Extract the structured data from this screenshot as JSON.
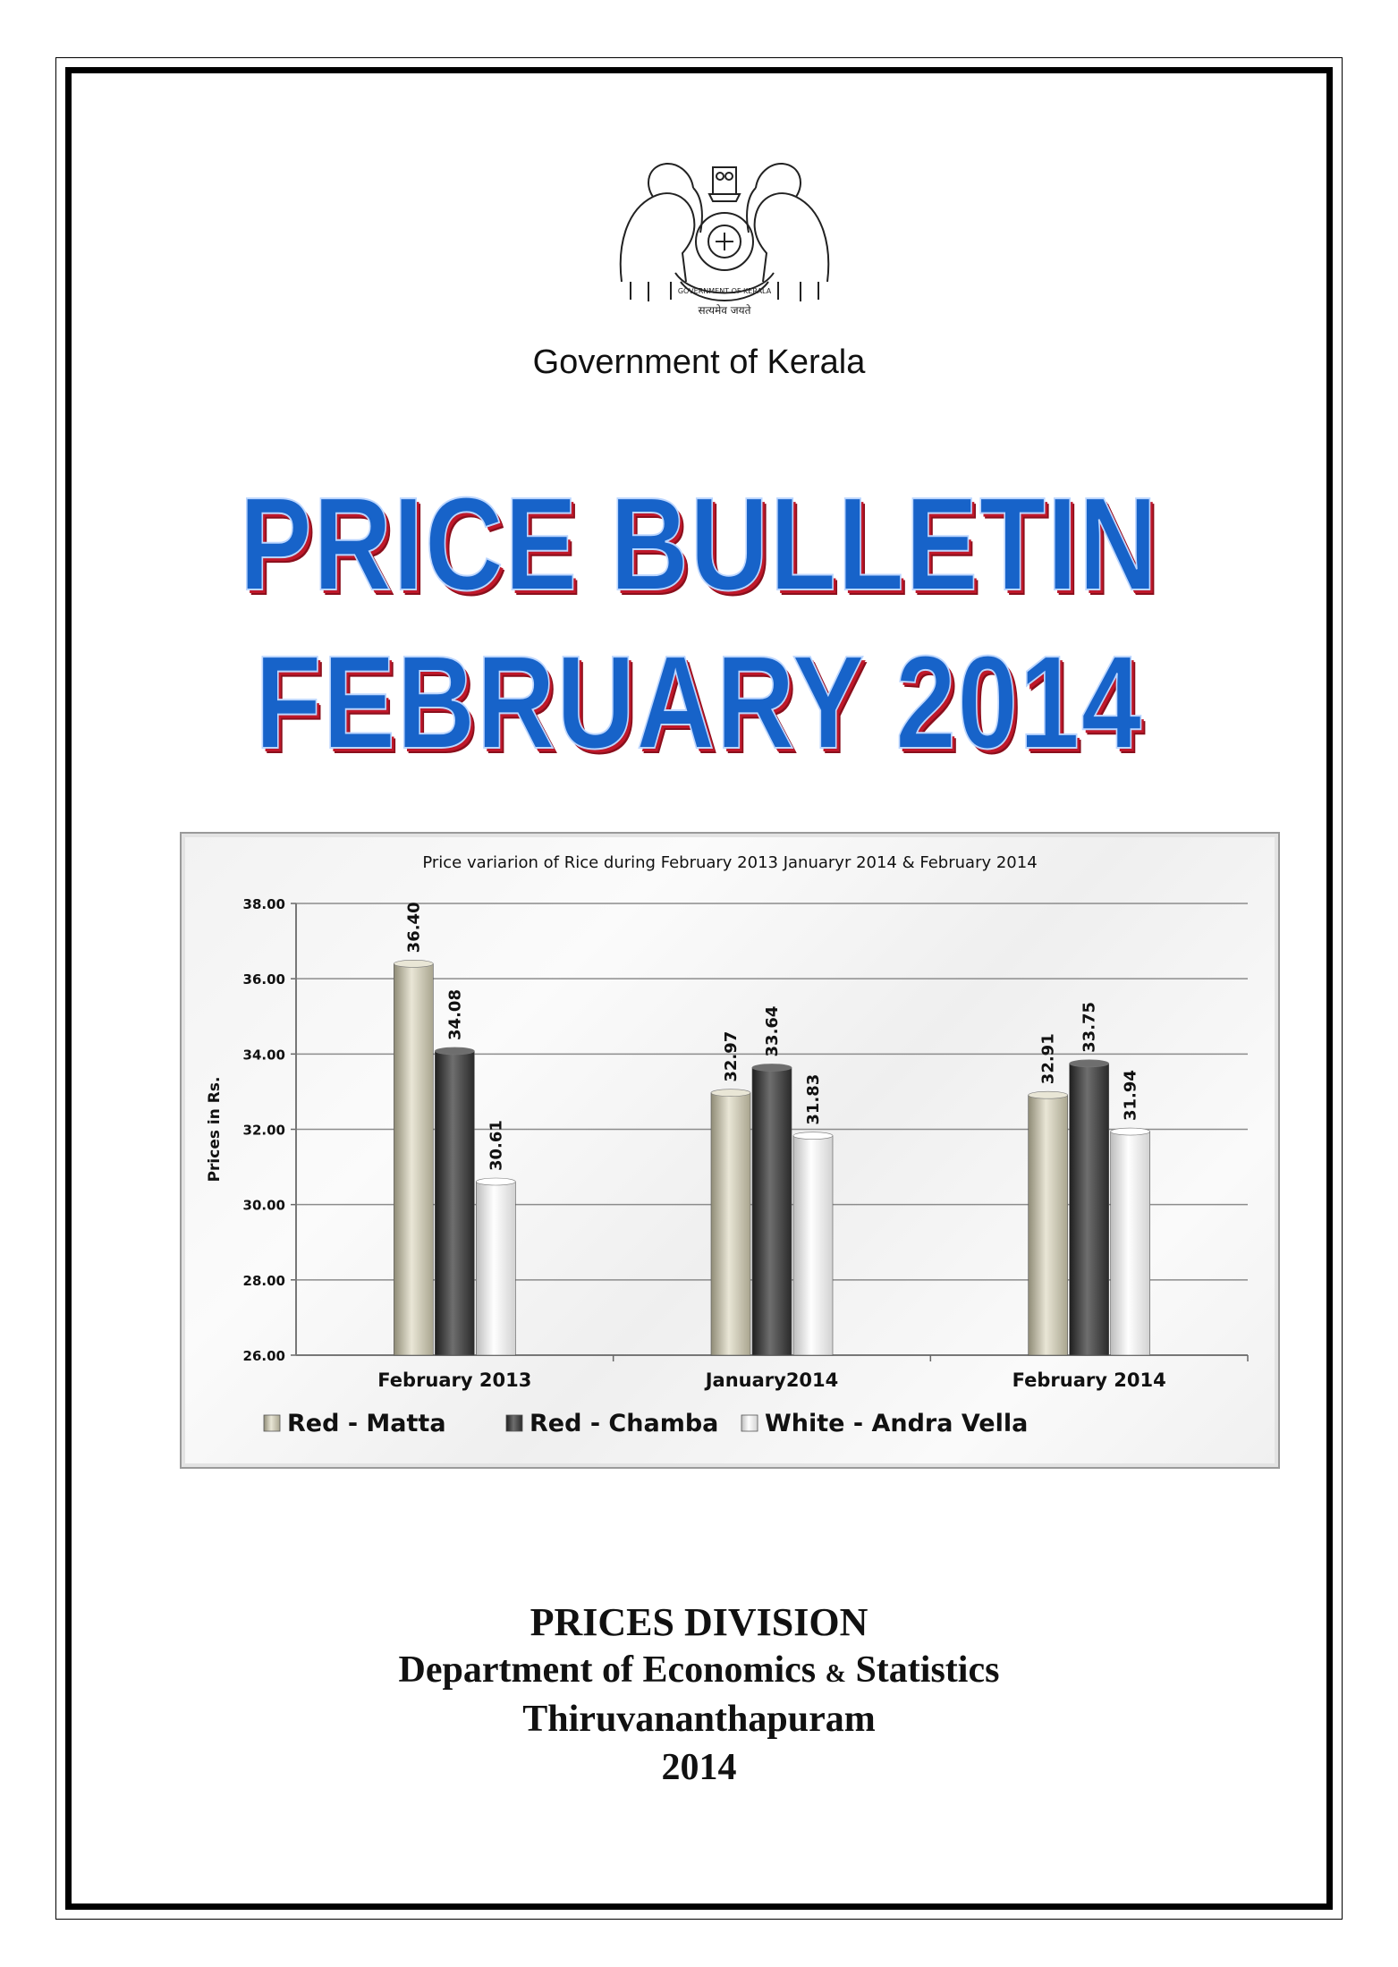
{
  "header": {
    "government": "Government of Kerala",
    "emblem_motto": "सत्यमेव जयते",
    "emblem_ribbon": "GOVERNMENT OF KERALA"
  },
  "title": {
    "line1": "PRICE BULLETIN",
    "line2": "FEBRUARY 2014"
  },
  "colors": {
    "title_blue": "#1763c9",
    "title_shadow": "#c0182a",
    "matta": "#cfcbb8",
    "chamba": "#4a4a4a",
    "andra": "#f0f0f0"
  },
  "chart_data": {
    "type": "bar",
    "title": "Price variarion of Rice during February 2013 Januaryr 2014 & February 2014",
    "ylabel": "Prices in Rs.",
    "xlabel": "",
    "categories": [
      "February 2013",
      "January2014",
      "February 2014"
    ],
    "ylim": [
      26,
      38
    ],
    "yticks": [
      "26.00",
      "28.00",
      "30.00",
      "32.00",
      "34.00",
      "36.00",
      "38.00"
    ],
    "grid": true,
    "legend_position": "bottom",
    "series": [
      {
        "name": "Red - Matta",
        "values": [
          36.4,
          32.97,
          32.91
        ],
        "labels": [
          "36.40",
          "32.97",
          "32.91"
        ],
        "color": "#cfcbb8"
      },
      {
        "name": "Red - Chamba",
        "values": [
          34.08,
          33.64,
          33.75
        ],
        "labels": [
          "34.08",
          "33.64",
          "33.75"
        ],
        "color": "#4a4a4a"
      },
      {
        "name": "White - Andra Vella",
        "values": [
          30.61,
          31.83,
          31.94
        ],
        "labels": [
          "30.61",
          "31.83",
          "31.94"
        ],
        "color": "#f0f0f0"
      }
    ]
  },
  "footer": {
    "division": "PRICES DIVISION",
    "department_a": "Department of Economics",
    "department_amp": "&",
    "department_b": "Statistics",
    "city": "Thiruvananthapuram",
    "year": "2014"
  }
}
